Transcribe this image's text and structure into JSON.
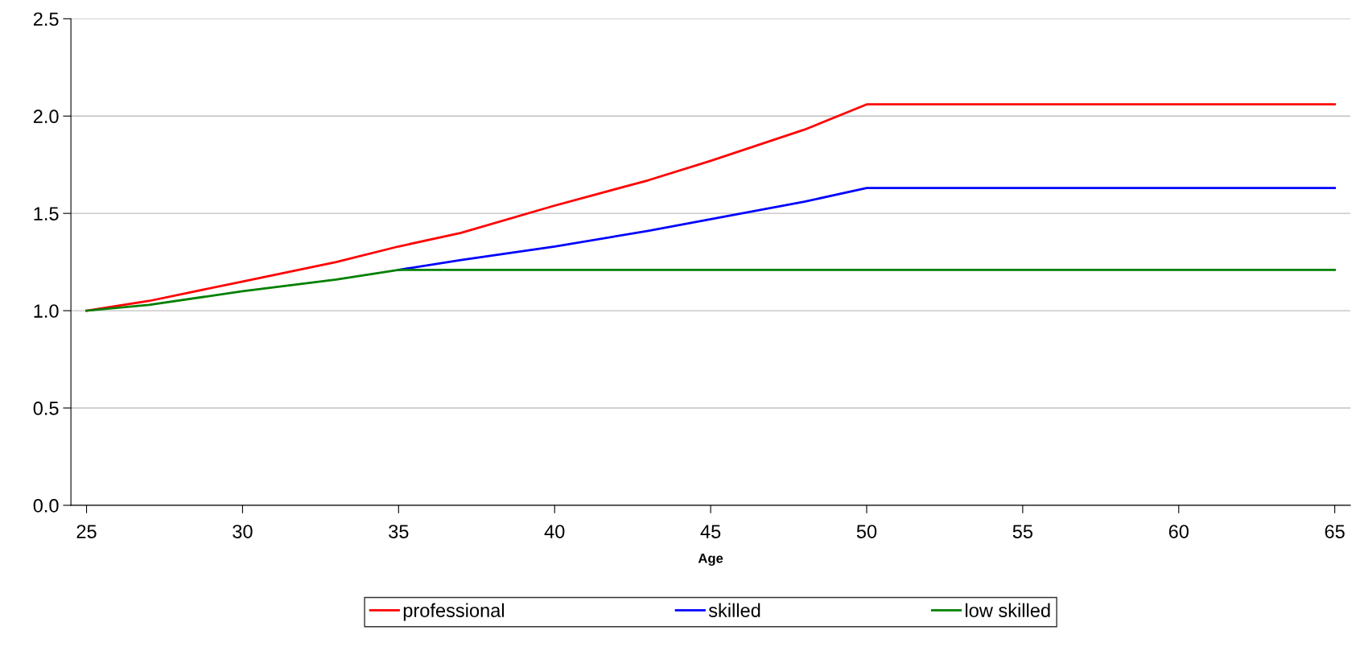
{
  "chart_data": {
    "type": "line",
    "xlabel": "Age",
    "xlim": [
      24.5,
      65.5
    ],
    "xticks": [
      25,
      30,
      35,
      40,
      45,
      50,
      55,
      60,
      65
    ],
    "ylim": [
      0,
      2.5
    ],
    "yticks": [
      {
        "value": 0,
        "label": "0.0"
      },
      0.5,
      {
        "value": 1,
        "label": "1.0"
      },
      1.5,
      {
        "value": 2,
        "label": "2.0"
      },
      2.5
    ],
    "grid": "y",
    "legend": "bottom",
    "marker": "none",
    "line_style": "solid",
    "x": [
      25,
      27,
      30,
      33,
      35,
      37,
      40,
      43,
      45,
      48,
      50,
      65
    ],
    "series": [
      {
        "name": "professional",
        "color": "#ff0000",
        "values": [
          1.0,
          1.05,
          1.15,
          1.25,
          1.33,
          1.4,
          1.54,
          1.67,
          1.77,
          1.93,
          2.06,
          2.06
        ]
      },
      {
        "name": "skilled",
        "color": "#0000ff",
        "values": [
          null,
          null,
          null,
          null,
          1.21,
          1.26,
          1.33,
          1.41,
          1.47,
          1.56,
          1.63,
          1.63
        ]
      },
      {
        "name": "low skilled",
        "color": "#008000",
        "values": [
          1.0,
          1.03,
          1.1,
          1.16,
          1.21,
          1.21,
          1.21,
          1.21,
          1.21,
          1.21,
          1.21,
          1.21
        ]
      }
    ]
  }
}
